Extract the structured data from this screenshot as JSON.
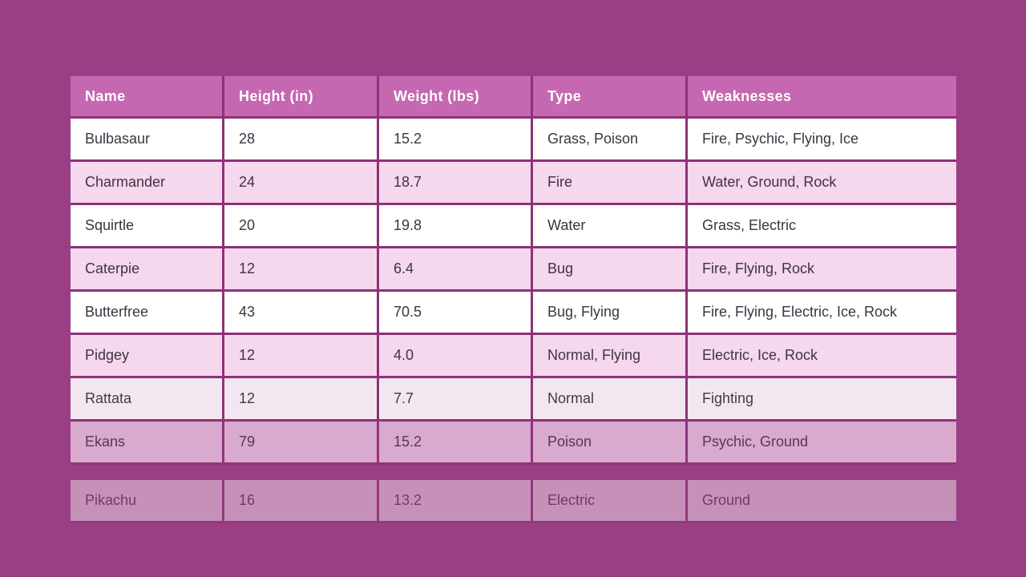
{
  "page": {
    "background": "#9a3e85",
    "divider_color": "#8d3277",
    "header_bg": "#c667b1",
    "header_text_color": "#ffffff",
    "row_white_bg": "#ffffff",
    "row_pink_bg": "#f5d7ee",
    "cell_text_color": "#3e3442"
  },
  "table": {
    "columns": [
      {
        "id": "name",
        "label": "Name"
      },
      {
        "id": "height",
        "label": "Height (in)"
      },
      {
        "id": "weight",
        "label": "Weight (lbs)"
      },
      {
        "id": "type",
        "label": "Type"
      },
      {
        "id": "weaknesses",
        "label": "Weaknesses"
      }
    ],
    "rows": [
      {
        "name": "Bulbasaur",
        "height": "28",
        "weight": "15.2",
        "type": "Grass, Poison",
        "weaknesses": "Fire, Psychic, Flying, Ice",
        "variant": "white",
        "opacity": 1,
        "detached": false
      },
      {
        "name": "Charmander",
        "height": "24",
        "weight": "18.7",
        "type": "Fire",
        "weaknesses": "Water, Ground, Rock",
        "variant": "pink",
        "opacity": 1,
        "detached": false
      },
      {
        "name": "Squirtle",
        "height": "20",
        "weight": "19.8",
        "type": "Water",
        "weaknesses": "Grass, Electric",
        "variant": "white",
        "opacity": 1,
        "detached": false
      },
      {
        "name": "Caterpie",
        "height": "12",
        "weight": "6.4",
        "type": "Bug",
        "weaknesses": "Fire, Flying, Rock",
        "variant": "pink",
        "opacity": 1,
        "detached": false
      },
      {
        "name": "Butterfree",
        "height": "43",
        "weight": "70.5",
        "type": "Bug, Flying",
        "weaknesses": "Fire, Flying, Electric, Ice, Rock",
        "variant": "white",
        "opacity": 1,
        "detached": false
      },
      {
        "name": "Pidgey",
        "height": "12",
        "weight": "4.0",
        "type": "Normal, Flying",
        "weaknesses": "Electric, Ice, Rock",
        "variant": "pink",
        "opacity": 1,
        "detached": false
      },
      {
        "name": "Rattata",
        "height": "12",
        "weight": "7.7",
        "type": "Normal",
        "weaknesses": "Fighting",
        "variant": "white",
        "opacity": 0.88,
        "detached": false
      },
      {
        "name": "Ekans",
        "height": "79",
        "weight": "15.2",
        "type": "Poison",
        "weaknesses": "Psychic, Ground",
        "variant": "pink",
        "opacity": 0.7,
        "detached": false
      },
      {
        "name": "Pikachu",
        "height": "16",
        "weight": "13.2",
        "type": "Electric",
        "weaknesses": "Ground",
        "variant": "white",
        "opacity": 0.43,
        "detached": true
      }
    ]
  }
}
